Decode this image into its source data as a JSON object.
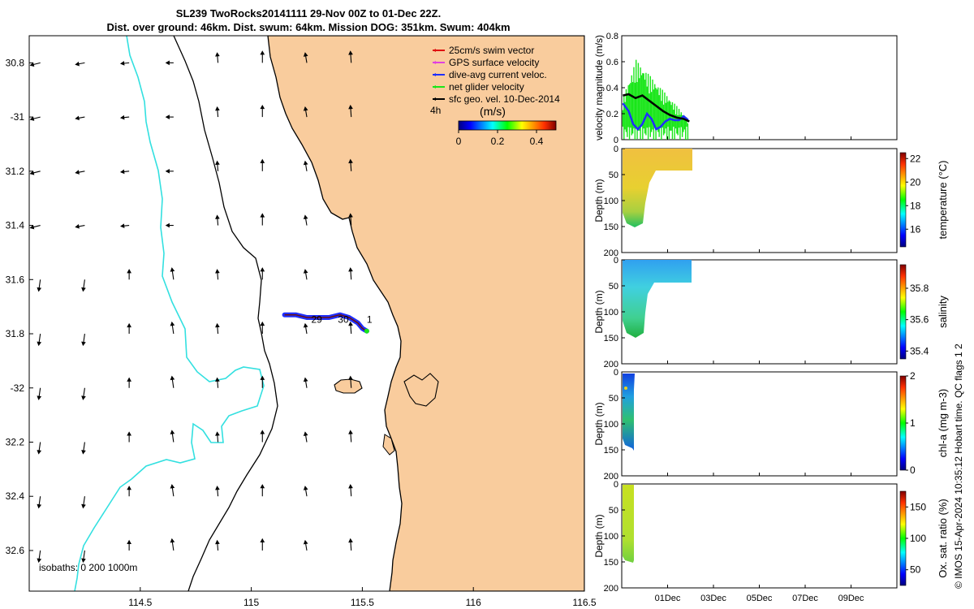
{
  "header": {
    "title_line1": "SL239 TwoRocks20141111 29-Nov 00Z to 01-Dec 22Z.",
    "title_line2": "Dist. over ground: 46km. Dist. swum: 64km. Mission DOG: 351km. Swum: 404km"
  },
  "colors": {
    "land": "#f9cc9d",
    "isobath": "#33e0e0",
    "track": "#1f2fff",
    "net_velocity": "#19e619",
    "swim_vector": "#e01010",
    "gps_velocity": "#e040e0"
  },
  "chart_data": [
    {
      "type": "map",
      "name": "glider-track-map",
      "xlim": [
        114.0,
        116.5
      ],
      "ylim": [
        -32.75,
        -30.7
      ],
      "x_ticks": [
        114.5,
        115,
        115.5,
        116,
        116.5
      ],
      "x_tick_labels": [
        "114.5",
        "115",
        "115.5",
        "116",
        "116.5"
      ],
      "y_ticks": [
        -30.8,
        -31,
        -31.2,
        -31.4,
        -31.6,
        -31.8,
        -32,
        -32.2,
        -32.4,
        -32.6
      ],
      "y_tick_labels": [
        "30.8",
        "-31",
        "31.2",
        "31.4",
        "31.6",
        "31.8",
        "-32",
        "32.2",
        "32.4",
        "32.6"
      ],
      "legend": [
        {
          "label": "25cm/s swim vector",
          "color": "#e01010"
        },
        {
          "label": "GPS surface velocity",
          "color": "#e040e0"
        },
        {
          "label": "dive-avg current veloc.",
          "color": "#1f2fff"
        },
        {
          "label": "net glider velocity",
          "color": "#19e619"
        },
        {
          "label": "sfc geo. vel. 10-Dec-2014",
          "color": "#000000"
        }
      ],
      "legend_extra": "4h",
      "colorbar": {
        "label": "(m/s)",
        "ticks": [
          "0",
          "0.2",
          "0.4"
        ],
        "range": [
          0,
          0.5
        ]
      },
      "isobath_label": "isobaths: 0   200  1000m",
      "track": {
        "lon": [
          115.15,
          115.2,
          115.25,
          115.3,
          115.35,
          115.4,
          115.44,
          115.48,
          115.5,
          115.52
        ],
        "lat": [
          -31.73,
          -31.73,
          -31.74,
          -31.74,
          -31.74,
          -31.73,
          -31.74,
          -31.76,
          -31.78,
          -31.79
        ]
      },
      "track_day_labels": [
        {
          "text": "29",
          "lon": 115.27,
          "lat": -31.745
        },
        {
          "text": "30",
          "lon": 115.39,
          "lat": -31.745
        },
        {
          "text": "1",
          "lon": 115.52,
          "lat": -31.745
        }
      ]
    },
    {
      "type": "line",
      "name": "velocity-magnitude",
      "ylabel": "velocity magnitude (m/s)",
      "ylim": [
        0,
        0.8
      ],
      "y_ticks": [
        "0",
        "0.2",
        "0.4",
        "0.6",
        "0.8"
      ],
      "series": [
        {
          "name": "net glider velocity",
          "color": "#19e619"
        },
        {
          "name": "sfc geo. vel.",
          "color": "#000000"
        },
        {
          "name": "dive-avg current",
          "color": "#1f2fff"
        }
      ]
    },
    {
      "type": "heatmap",
      "name": "temperature",
      "ylabel": "Depth (m)",
      "y_ticks": [
        "0",
        "50",
        "100",
        "150",
        "200"
      ],
      "colorbar_label": "temperature (°C)",
      "colorbar_ticks": [
        "22",
        "20",
        "18",
        "16"
      ],
      "range": [
        14.5,
        22.5
      ]
    },
    {
      "type": "heatmap",
      "name": "salinity",
      "ylabel": "Depth (m)",
      "y_ticks": [
        "0",
        "50",
        "100",
        "150",
        "200"
      ],
      "colorbar_label": "salinity",
      "colorbar_ticks": [
        "35.8",
        "35.6",
        "35.4"
      ],
      "range": [
        35.35,
        35.95
      ]
    },
    {
      "type": "heatmap",
      "name": "chlorophyll",
      "ylabel": "Depth (m)",
      "y_ticks": [
        "0",
        "50",
        "100",
        "150",
        "200"
      ],
      "colorbar_label": "chl-a (mg m-3)",
      "colorbar_ticks": [
        "2",
        "1",
        "0"
      ],
      "range": [
        0,
        2
      ]
    },
    {
      "type": "heatmap",
      "name": "oxygen",
      "ylabel": "Depth (m)",
      "y_ticks": [
        "0",
        "50",
        "100",
        "150",
        "200"
      ],
      "colorbar_label": "Ox. sat. ratio (%)",
      "colorbar_ticks": [
        "150",
        "100",
        "50"
      ],
      "range": [
        25,
        175
      ]
    }
  ],
  "time_axis": {
    "xlim_days": [
      0,
      12
    ],
    "ticks": [
      {
        "label": "01Dec",
        "day": 2
      },
      {
        "label": "03Dec",
        "day": 4
      },
      {
        "label": "05Dec",
        "day": 6
      },
      {
        "label": "07Dec",
        "day": 8
      },
      {
        "label": "09Dec",
        "day": 10
      }
    ]
  },
  "footer": {
    "credit": "© IMOS 15-Apr-2024 10:35:12 Hobart time. QC flags 1  2"
  }
}
